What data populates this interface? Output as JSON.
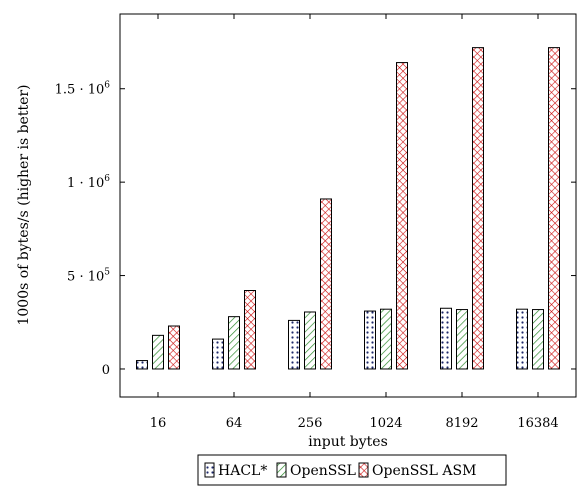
{
  "chart_data": {
    "type": "bar",
    "title": "",
    "xlabel": "input bytes",
    "ylabel": "1000s of bytes/s (higher is better)",
    "categories": [
      "16",
      "64",
      "256",
      "1024",
      "8192",
      "16384"
    ],
    "ylim": [
      -150000,
      1900000
    ],
    "yticks": [
      {
        "value": 0,
        "base": "0",
        "exp": ""
      },
      {
        "value": 500000,
        "base": "5 · 10",
        "exp": "5"
      },
      {
        "value": 1000000,
        "base": "1 · 10",
        "exp": "6"
      },
      {
        "value": 1500000,
        "base": "1.5 · 10",
        "exp": "6"
      }
    ],
    "series": [
      {
        "name": "HACL*",
        "pattern": "dots",
        "color": "#1f2a6b",
        "values": [
          45000,
          160000,
          260000,
          310000,
          325000,
          320000
        ]
      },
      {
        "name": "OpenSSL",
        "pattern": "diagonal",
        "color": "#2e8b2e",
        "values": [
          180000,
          280000,
          305000,
          320000,
          318000,
          318000
        ]
      },
      {
        "name": "OpenSSL ASM",
        "pattern": "crosshatch",
        "color": "#cc1111",
        "values": [
          230000,
          420000,
          910000,
          1640000,
          1720000,
          1720000
        ]
      }
    ],
    "legend": {
      "placement": "bottom-center"
    },
    "grid": false
  }
}
